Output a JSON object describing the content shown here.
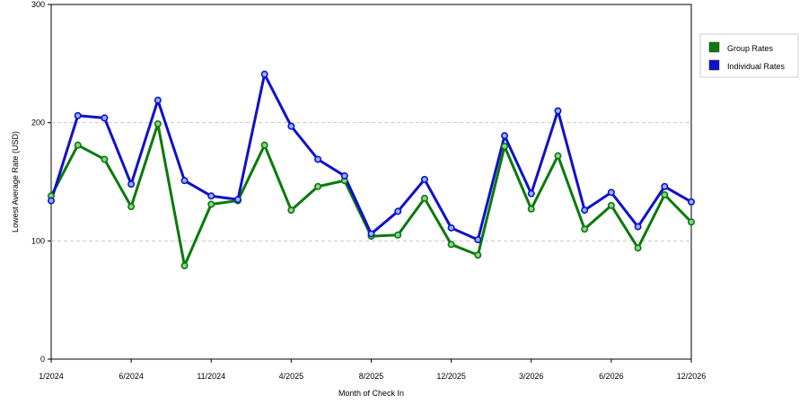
{
  "chart_data": {
    "type": "line",
    "title": "",
    "xlabel": "Month of Check In",
    "ylabel": "Lowest Average Rate (USD)",
    "ylim": [
      0,
      300
    ],
    "y_ticks": [
      0,
      100,
      200,
      300
    ],
    "x_tick_labels": [
      "1/2024",
      "6/2024",
      "11/2024",
      "4/2025",
      "8/2025",
      "12/2025",
      "3/2026",
      "6/2026",
      "12/2026"
    ],
    "x_tick_months": [
      0,
      3,
      6,
      9,
      12,
      15,
      18,
      21,
      24
    ],
    "x_range_months": [
      0,
      24
    ],
    "grid": {
      "horizontal": true,
      "style": "dashed",
      "values": [
        100,
        200
      ]
    },
    "legend": {
      "placement": "right"
    },
    "series": [
      {
        "name": "Group Rates",
        "color": "#0a7a0a",
        "x": [
          0,
          1,
          2,
          3,
          4,
          5,
          6,
          7,
          8,
          9,
          10,
          11,
          12,
          13,
          14,
          15,
          16,
          17,
          18,
          19,
          20,
          21,
          22,
          23,
          24
        ],
        "values": [
          138,
          181,
          169,
          129,
          199,
          79,
          131,
          134,
          181,
          126,
          146,
          151,
          104,
          105,
          136,
          97,
          88,
          180,
          127,
          172,
          110,
          130,
          94,
          139,
          116
        ]
      },
      {
        "name": "Individual Rates",
        "color": "#1010cc",
        "x": [
          0,
          1,
          2,
          3,
          4,
          5,
          6,
          7,
          8,
          9,
          10,
          11,
          12,
          13,
          14,
          15,
          16,
          17,
          18,
          19,
          20,
          21,
          22,
          23,
          24
        ],
        "values": [
          134,
          206,
          204,
          148,
          219,
          151,
          138,
          135,
          241,
          197,
          169,
          155,
          106,
          125,
          152,
          111,
          101,
          189,
          140,
          210,
          126,
          141,
          112,
          146,
          133
        ]
      }
    ]
  }
}
